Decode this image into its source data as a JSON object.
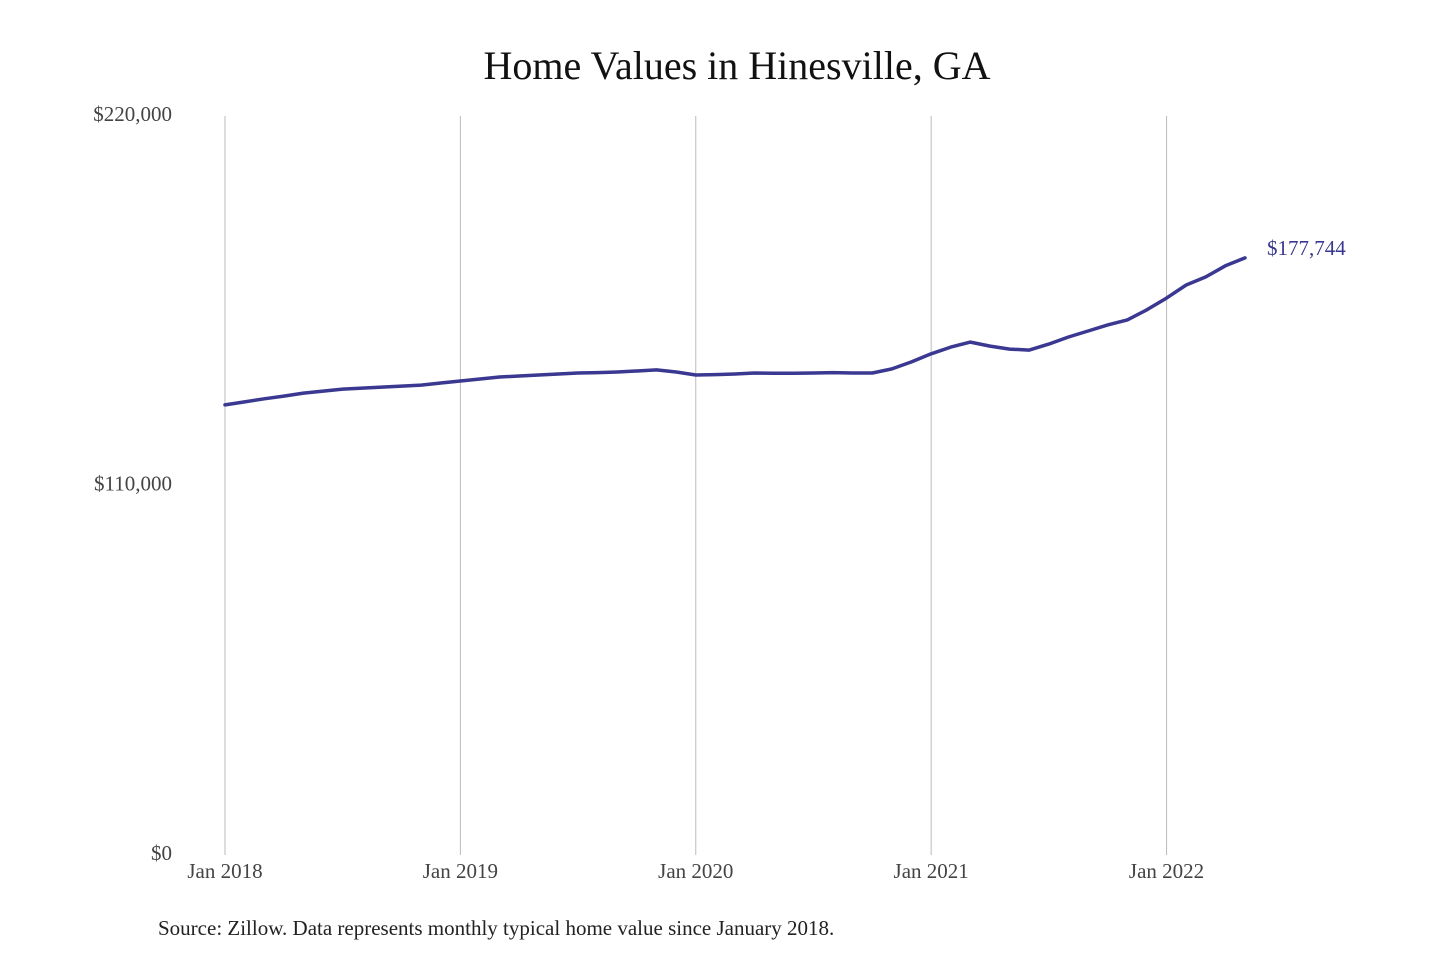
{
  "chart_data": {
    "type": "line",
    "title": "Home Values in Hinesville, GA",
    "source": "Source: Zillow. Data represents monthly typical home value since January 2018.",
    "x": [
      "2018-01",
      "2018-02",
      "2018-03",
      "2018-04",
      "2018-05",
      "2018-06",
      "2018-07",
      "2018-08",
      "2018-09",
      "2018-10",
      "2018-11",
      "2018-12",
      "2019-01",
      "2019-02",
      "2019-03",
      "2019-04",
      "2019-05",
      "2019-06",
      "2019-07",
      "2019-08",
      "2019-09",
      "2019-10",
      "2019-11",
      "2019-12",
      "2020-01",
      "2020-02",
      "2020-03",
      "2020-04",
      "2020-05",
      "2020-06",
      "2020-07",
      "2020-08",
      "2020-09",
      "2020-10",
      "2020-11",
      "2020-12",
      "2021-01",
      "2021-02",
      "2021-03",
      "2021-04",
      "2021-05",
      "2021-06",
      "2021-07",
      "2021-08",
      "2021-09",
      "2021-10",
      "2021-11",
      "2021-12",
      "2022-01",
      "2022-02",
      "2022-03",
      "2022-04",
      "2022-05"
    ],
    "series": [
      {
        "name": "Home value",
        "color": "#3a3891",
        "values": [
          134000,
          134900,
          135800,
          136600,
          137500,
          138100,
          138700,
          139000,
          139300,
          139600,
          139900,
          140500,
          141100,
          141700,
          142300,
          142600,
          142900,
          143200,
          143500,
          143600,
          143800,
          144100,
          144400,
          143800,
          142900,
          143000,
          143200,
          143500,
          143400,
          143400,
          143500,
          143600,
          143500,
          143500,
          144700,
          146800,
          149200,
          151200,
          152700,
          151500,
          150600,
          150300,
          152100,
          154200,
          156000,
          157800,
          159300,
          162300,
          165800,
          169700,
          172100,
          175400,
          177744
        ],
        "value_labels": [
          null,
          null,
          null,
          null,
          null,
          null,
          null,
          null,
          null,
          null,
          null,
          null,
          null,
          null,
          null,
          null,
          null,
          null,
          null,
          null,
          null,
          null,
          null,
          null,
          null,
          null,
          null,
          null,
          null,
          null,
          null,
          null,
          null,
          null,
          null,
          null,
          null,
          null,
          null,
          null,
          null,
          null,
          null,
          null,
          null,
          null,
          null,
          null,
          null,
          null,
          null,
          null,
          "$177,744"
        ]
      }
    ],
    "xlim": [
      "2018-01",
      "2022-05"
    ],
    "xticks": [
      {
        "value": "2018-01",
        "label": "Jan 2018"
      },
      {
        "value": "2019-01",
        "label": "Jan 2019"
      },
      {
        "value": "2020-01",
        "label": "Jan 2020"
      },
      {
        "value": "2021-01",
        "label": "Jan 2021"
      },
      {
        "value": "2022-01",
        "label": "Jan 2022"
      }
    ],
    "ylim": [
      0,
      220000
    ],
    "yticks": [
      {
        "value": 0,
        "label": "$0"
      },
      {
        "value": 110000,
        "label": "$110,000"
      },
      {
        "value": 220000,
        "label": "$220,000"
      }
    ],
    "grid": "x"
  }
}
